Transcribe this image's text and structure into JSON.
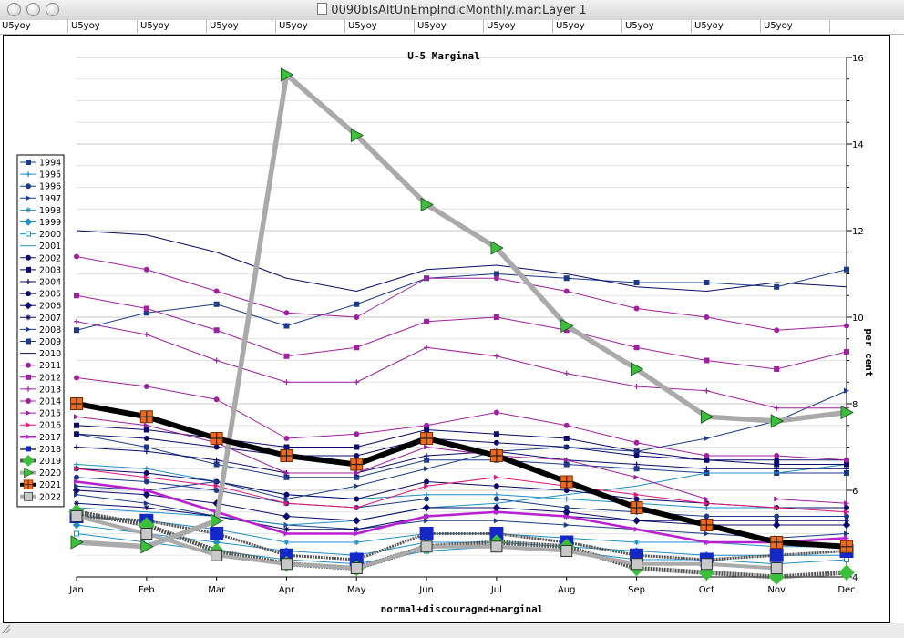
{
  "window": {
    "title": "0090blsAltUnEmpIndicMonthly.mar:Layer 1"
  },
  "tabs": [
    "U5yoy",
    "U5yoy",
    "U5yoy",
    "U5yoy",
    "U5yoy",
    "U5yoy",
    "U5yoy",
    "U5yoy",
    "U5yoy",
    "U5yoy",
    "U5yoy",
    "U5yoy"
  ],
  "chart_data": {
    "type": "line",
    "title": "U-5 Marginal",
    "xlabel": "normal+discouraged+marginal",
    "ylabel": "per cent",
    "categories": [
      "Jan",
      "Feb",
      "Mar",
      "Apr",
      "May",
      "Jun",
      "Jul",
      "Aug",
      "Sep",
      "Oct",
      "Nov",
      "Dec"
    ],
    "ylim": [
      4,
      16
    ],
    "yticks": [
      4,
      6,
      8,
      10,
      12,
      14,
      16
    ],
    "grid": true,
    "legend_position": "left",
    "series": [
      {
        "name": "1994",
        "color": "#1b3a8c",
        "marker": "square",
        "values": [
          7.3,
          7.0,
          6.6,
          6.3,
          6.3,
          6.7,
          6.7,
          6.6,
          6.5,
          6.4,
          6.4,
          6.4
        ]
      },
      {
        "name": "1995",
        "color": "#1e90c8",
        "marker": "plus",
        "values": [
          6.6,
          6.5,
          6.2,
          5.9,
          5.8,
          5.9,
          5.9,
          5.8,
          5.7,
          5.6,
          5.6,
          5.6
        ]
      },
      {
        "name": "1996",
        "color": "#1b3a8c",
        "marker": "circle",
        "values": [
          6.3,
          6.2,
          6.0,
          5.7,
          5.6,
          5.8,
          5.8,
          5.6,
          5.5,
          5.4,
          5.4,
          5.4
        ]
      },
      {
        "name": "1997",
        "color": "#1b3a8c",
        "marker": "triangle",
        "values": [
          5.9,
          5.7,
          5.4,
          5.2,
          5.1,
          5.3,
          5.3,
          5.2,
          5.1,
          5.0,
          4.9,
          5.0
        ]
      },
      {
        "name": "1998",
        "color": "#1e90c8",
        "marker": "star",
        "values": [
          5.4,
          5.3,
          5.1,
          4.8,
          4.8,
          5.0,
          5.0,
          4.9,
          4.8,
          4.8,
          4.7,
          4.7
        ]
      },
      {
        "name": "1999",
        "color": "#1e90c8",
        "marker": "diamond",
        "values": [
          5.2,
          5.0,
          4.8,
          4.6,
          4.5,
          4.8,
          4.8,
          4.7,
          4.6,
          4.5,
          4.5,
          4.5
        ]
      },
      {
        "name": "2000",
        "color": "#1e90c8",
        "marker": "square-open",
        "values": [
          5.0,
          4.8,
          4.6,
          4.4,
          4.3,
          4.6,
          4.7,
          4.6,
          4.4,
          4.4,
          4.3,
          4.4
        ]
      },
      {
        "name": "2001",
        "color": "#1e90c8",
        "marker": "none",
        "values": [
          5.6,
          5.5,
          5.4,
          5.2,
          5.3,
          5.6,
          5.7,
          5.9,
          6.1,
          6.4,
          6.4,
          6.6
        ]
      },
      {
        "name": "2002",
        "color": "#0a0a6e",
        "marker": "circle",
        "values": [
          7.3,
          7.2,
          7.0,
          6.8,
          6.8,
          7.2,
          7.1,
          7.0,
          6.8,
          6.7,
          6.7,
          6.7
        ]
      },
      {
        "name": "2003",
        "color": "#0a0a6e",
        "marker": "square",
        "values": [
          7.5,
          7.4,
          7.2,
          7.0,
          7.0,
          7.4,
          7.3,
          7.2,
          6.9,
          6.7,
          6.6,
          6.6
        ]
      },
      {
        "name": "2004",
        "color": "#0a0a6e",
        "marker": "plus",
        "values": [
          7.0,
          6.9,
          6.7,
          6.4,
          6.4,
          6.8,
          6.9,
          6.7,
          6.6,
          6.5,
          6.5,
          6.5
        ]
      },
      {
        "name": "2005",
        "color": "#0a0a6e",
        "marker": "circle",
        "values": [
          6.5,
          6.4,
          6.2,
          5.9,
          5.8,
          6.2,
          6.1,
          6.0,
          5.8,
          5.7,
          5.6,
          5.6
        ]
      },
      {
        "name": "2006",
        "color": "#0a0a6e",
        "marker": "diamond",
        "values": [
          6.0,
          5.9,
          5.7,
          5.4,
          5.3,
          5.6,
          5.6,
          5.5,
          5.3,
          5.2,
          5.2,
          5.2
        ]
      },
      {
        "name": "2007",
        "color": "#0a0a6e",
        "marker": "star",
        "values": [
          5.7,
          5.6,
          5.4,
          5.1,
          5.1,
          5.4,
          5.5,
          5.4,
          5.3,
          5.3,
          5.3,
          5.3
        ]
      },
      {
        "name": "2008",
        "color": "#1b3a8c",
        "marker": "triangle",
        "values": [
          6.1,
          6.0,
          6.2,
          5.8,
          6.1,
          6.5,
          6.9,
          7.0,
          6.9,
          7.2,
          7.6,
          8.3
        ]
      },
      {
        "name": "2009",
        "color": "#1b3a8c",
        "marker": "square",
        "values": [
          9.7,
          10.1,
          10.3,
          9.8,
          10.3,
          10.9,
          11.0,
          10.9,
          10.8,
          10.8,
          10.7,
          11.1
        ]
      },
      {
        "name": "2010",
        "color": "#0a0a6e",
        "marker": "none",
        "values": [
          12.0,
          11.9,
          11.5,
          10.9,
          10.6,
          11.1,
          11.2,
          11.0,
          10.7,
          10.6,
          10.8,
          10.7
        ]
      },
      {
        "name": "2011",
        "color": "#a020a0",
        "marker": "circle",
        "values": [
          11.4,
          11.1,
          10.6,
          10.1,
          10.0,
          10.9,
          10.9,
          10.6,
          10.2,
          10.0,
          9.7,
          9.8
        ]
      },
      {
        "name": "2012",
        "color": "#a020a0",
        "marker": "square",
        "values": [
          10.5,
          10.2,
          9.7,
          9.1,
          9.3,
          9.9,
          10.0,
          9.7,
          9.3,
          9.0,
          8.8,
          9.2
        ]
      },
      {
        "name": "2013",
        "color": "#a020a0",
        "marker": "plus",
        "values": [
          9.9,
          9.6,
          9.0,
          8.5,
          8.5,
          9.3,
          9.1,
          8.7,
          8.4,
          8.3,
          7.9,
          7.9
        ]
      },
      {
        "name": "2014",
        "color": "#a020a0",
        "marker": "circle",
        "values": [
          8.6,
          8.4,
          8.1,
          7.2,
          7.3,
          7.5,
          7.8,
          7.5,
          7.1,
          6.8,
          6.8,
          6.7
        ]
      },
      {
        "name": "2015",
        "color": "#a020a0",
        "marker": "triangle",
        "values": [
          7.7,
          7.5,
          7.1,
          6.4,
          6.4,
          7.0,
          6.8,
          6.7,
          6.3,
          5.8,
          5.8,
          5.7
        ]
      },
      {
        "name": "2016",
        "color": "#e0187a",
        "marker": "triangle",
        "values": [
          6.5,
          6.3,
          6.1,
          5.7,
          5.6,
          6.1,
          6.3,
          6.1,
          5.9,
          5.7,
          5.6,
          5.5
        ]
      },
      {
        "name": "2017",
        "color": "#b820d0",
        "marker": "triangle",
        "values": [
          6.2,
          6.0,
          5.5,
          5.0,
          5.0,
          5.4,
          5.5,
          5.4,
          5.1,
          4.8,
          4.8,
          4.9
        ]
      },
      {
        "name": "2018",
        "color": "#1428c8",
        "marker": "square",
        "values": [
          5.4,
          5.3,
          5.0,
          4.5,
          4.4,
          5.0,
          5.0,
          4.8,
          4.5,
          4.4,
          4.5,
          4.6
        ]
      },
      {
        "name": "2019",
        "color": "#4ab04a",
        "marker": "diamond",
        "values": [
          5.5,
          5.2,
          4.6,
          4.3,
          4.2,
          4.7,
          4.8,
          4.7,
          4.2,
          4.1,
          4.0,
          4.1
        ]
      },
      {
        "name": "2020",
        "color": "#aaaaaa",
        "marker": "triangle-right-green",
        "values": [
          4.8,
          4.7,
          5.3,
          15.6,
          14.2,
          12.6,
          11.6,
          9.8,
          8.8,
          7.7,
          7.6,
          7.8
        ]
      },
      {
        "name": "2021",
        "color": "#000000",
        "marker": "square-plus-orange",
        "values": [
          8.0,
          7.7,
          7.2,
          6.8,
          6.6,
          7.2,
          6.8,
          6.2,
          5.6,
          5.2,
          4.8,
          4.7
        ]
      },
      {
        "name": "2022",
        "color": "#aaaaaa",
        "marker": "square-gray",
        "values": [
          5.4,
          5.0,
          4.5,
          4.3,
          4.2,
          4.7,
          4.7,
          4.6,
          4.3,
          4.3,
          4.2,
          null
        ]
      }
    ]
  }
}
